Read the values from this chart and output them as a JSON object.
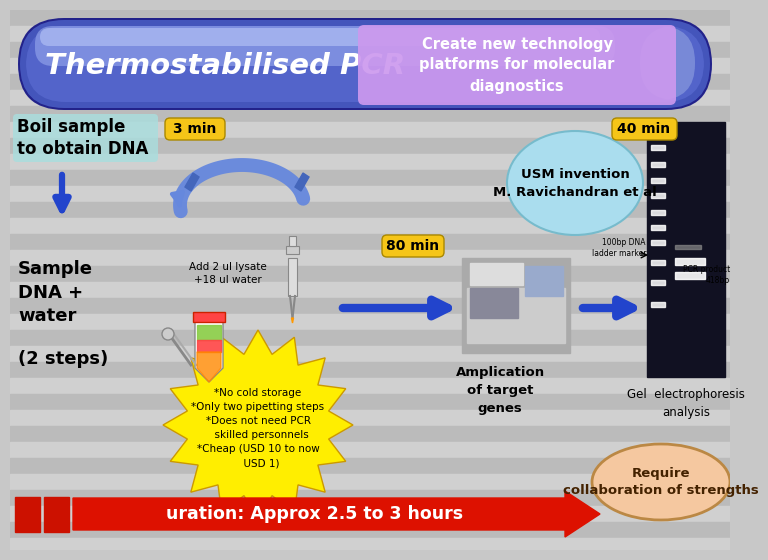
{
  "bg_color": "#c8c8c8",
  "title_text": "Thermostabilised PCR",
  "subtitle_text": "Create new technology\nplatforms for molecular\ndiagnostics",
  "boil_text": "Boil sample\nto obtain DNA",
  "time_3min": "3 min",
  "time_80min": "80 min",
  "time_40min": "40 min",
  "usm_text": "USM invention\nM. Ravichandran et al",
  "sample_text": "Sample\nDNA +\nwater",
  "steps_text": "(2 steps)",
  "add_text": "Add 2 ul lysate\n+18 ul water",
  "amplification_text": "Amplication\nof target\ngenes",
  "gel_text": "Gel  electrophoresis\nanalysis",
  "ladder_text": "100bp DNA\nladder marker",
  "pcr_product_text": "PCR product\n418bp",
  "bullet_text": "*No cold storage\n*Only two pipetting steps\n*Does not need PCR\n  skilled personnels\n*Cheap (USD 10 to now\n  USD 1)",
  "duration_text": "uration: Approx 2.5 to 3 hours",
  "require_text": "Require\ncollaboration of strengths",
  "pill_color_dark": "#3344aa",
  "pill_color_mid": "#5566cc",
  "pill_color_light": "#7799ee",
  "pill_sheen": "#aabbff",
  "subtitle_bg": "#cc99ee",
  "time_badge_color": "#f5c518",
  "usm_circle_color": "#aaddee",
  "arrow_blue": "#2244cc",
  "arrow_red": "#cc1100",
  "starburst_color": "#ffee00",
  "require_ellipse_color": "#f5c8a0",
  "boil_box_color": "#aadddd",
  "stripe_dark": "#bbbbbb",
  "stripe_light": "#d0d0d0"
}
